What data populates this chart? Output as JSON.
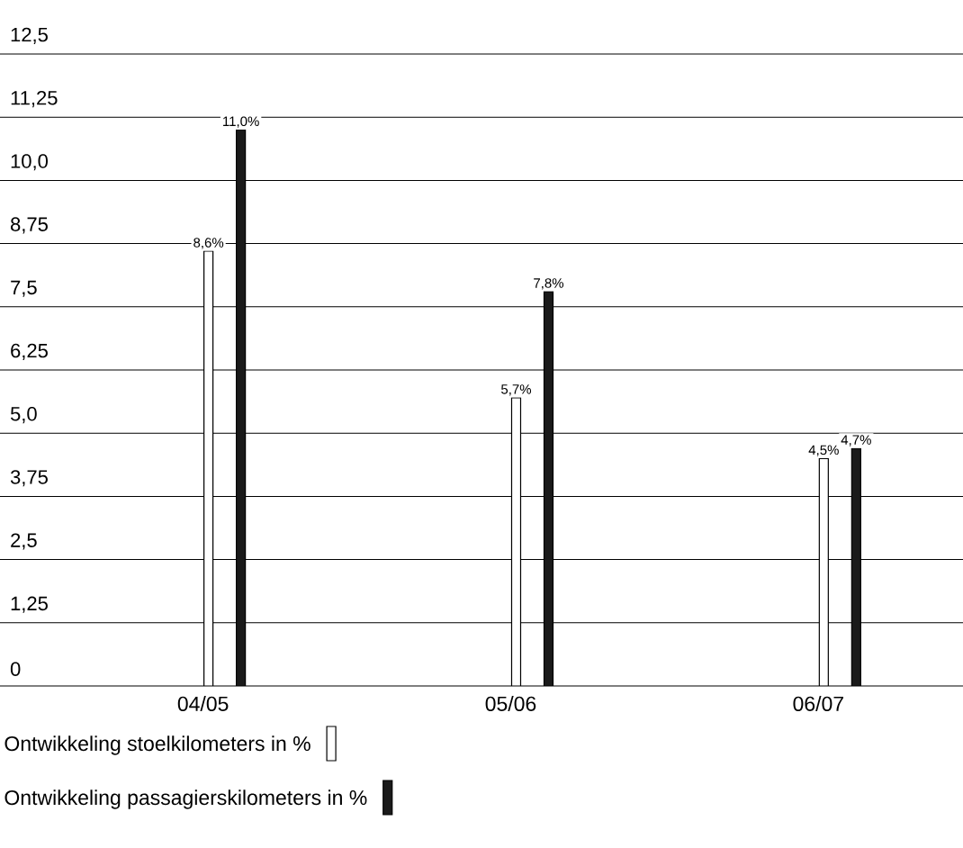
{
  "chart_data": {
    "type": "bar",
    "categories": [
      "04/05",
      "05/06",
      "06/07"
    ],
    "series": [
      {
        "name": "Ontwikkeling stoelkilometers in %",
        "color": "#ffffff",
        "values": [
          8.6,
          5.7,
          4.5
        ],
        "value_labels": [
          "8,6%",
          "5,7%",
          "4,5%"
        ]
      },
      {
        "name": "Ontwikkeling passagierskilometers in %",
        "color": "#1a1a1a",
        "values": [
          11.0,
          7.8,
          4.7
        ],
        "value_labels": [
          "11,0%",
          "7,8%",
          "4,7%"
        ]
      }
    ],
    "ylim": [
      0,
      12.5
    ],
    "yticks": [
      {
        "value": 0,
        "label": "0"
      },
      {
        "value": 1.25,
        "label": "1,25"
      },
      {
        "value": 2.5,
        "label": "2,5"
      },
      {
        "value": 3.75,
        "label": "3,75"
      },
      {
        "value": 5,
        "label": "5,0"
      },
      {
        "value": 6.25,
        "label": "6,25"
      },
      {
        "value": 7.5,
        "label": "7,5"
      },
      {
        "value": 8.75,
        "label": "8,75"
      },
      {
        "value": 10,
        "label": "10,0"
      },
      {
        "value": 11.25,
        "label": "11,25"
      },
      {
        "value": 12.5,
        "label": "12,5"
      }
    ],
    "grid": "y",
    "legend": "bottom"
  }
}
